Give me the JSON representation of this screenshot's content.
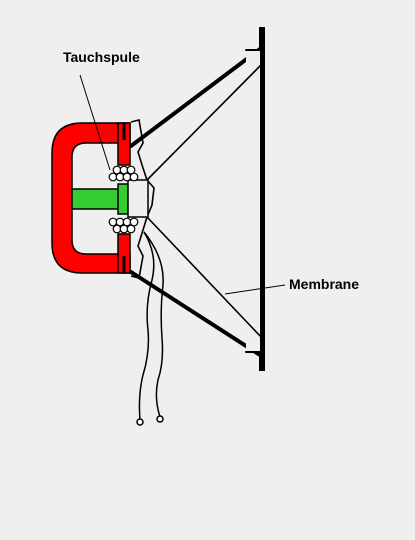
{
  "labels": {
    "voice_coil": "Tauchspule",
    "membrane": "Membrane"
  },
  "colors": {
    "background": "#efefef",
    "magnet": "#ff0000",
    "pole_piece": "#33cc33",
    "outline": "#000000",
    "coil_wire": "#ffffff"
  }
}
